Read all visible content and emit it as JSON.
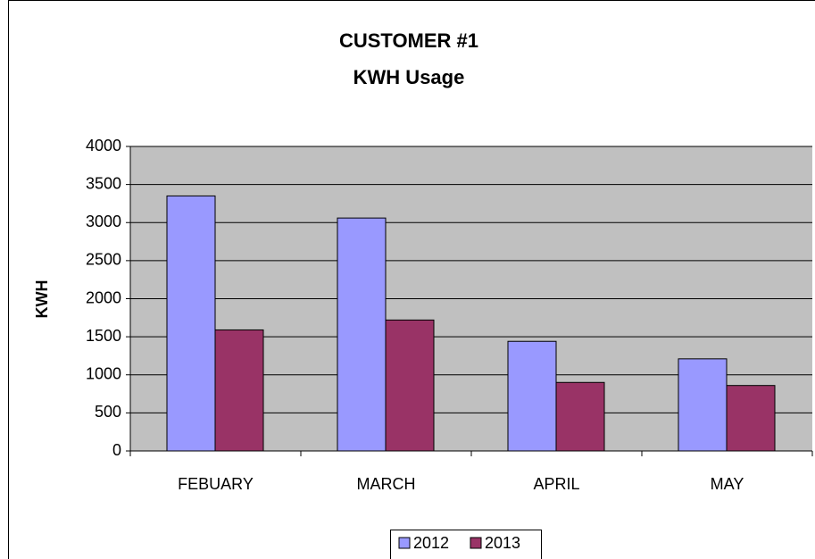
{
  "chart_data": {
    "type": "bar",
    "title": [
      "CUSTOMER #1",
      "KWH Usage"
    ],
    "y_label": "KWH",
    "categories": [
      "FEBUARY",
      "MARCH",
      "APRIL",
      "MAY"
    ],
    "series": [
      {
        "name": "2012",
        "color": "#9999ff",
        "values": [
          3350,
          3060,
          1440,
          1210
        ]
      },
      {
        "name": "2013",
        "color": "#993366",
        "values": [
          1590,
          1720,
          900,
          860
        ]
      }
    ],
    "ylim": [
      0,
      4000
    ],
    "yticks": [
      0,
      500,
      1000,
      1500,
      2000,
      2500,
      3000,
      3500,
      4000
    ],
    "grid": true,
    "legend": "bottom"
  }
}
